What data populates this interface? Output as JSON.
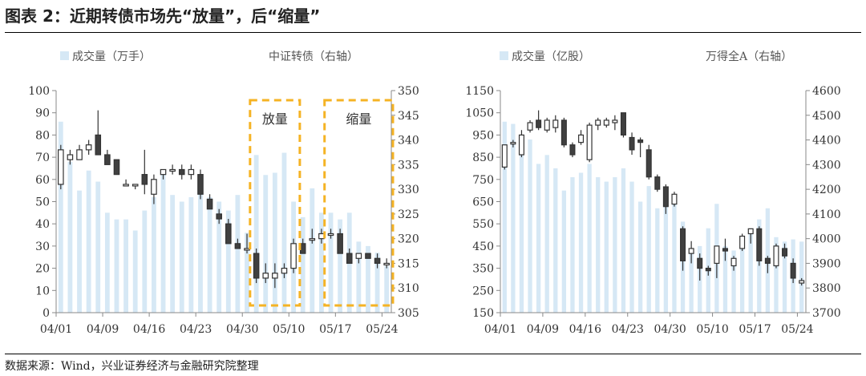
{
  "title": "图表 2：近期转债市场先“放量”，后“缩量”",
  "source": "数据来源：Wind，兴业证券经济与金融研究院整理",
  "colors": {
    "volume": "#d6e8f5",
    "up_fill": "#ffffff",
    "down_fill": "#404040",
    "stroke": "#333333",
    "highlight": "#f5b324"
  },
  "chart_data": [
    {
      "type": "candlestick-bar",
      "legend": {
        "volume": "成交量（万手）",
        "price": "中证转债（右轴）"
      },
      "ylim_left": [
        0,
        100
      ],
      "ylim_right": [
        305,
        350
      ],
      "yticks_left": [
        "0",
        "10",
        "20",
        "30",
        "40",
        "50",
        "60",
        "70",
        "80",
        "90",
        "100"
      ],
      "yticks_right": [
        "305",
        "310",
        "315",
        "320",
        "325",
        "330",
        "335",
        "340",
        "345",
        "350"
      ],
      "xticks": [
        "04/01",
        "04/09",
        "04/16",
        "04/23",
        "04/30",
        "05/10",
        "05/17",
        "05/24"
      ],
      "xtick_index": [
        0,
        5,
        10,
        15,
        20,
        25,
        30,
        35
      ],
      "n_days": 36,
      "volume": [
        86,
        68,
        55,
        64,
        59,
        45,
        42,
        42,
        37,
        46,
        52,
        64,
        53,
        50,
        52,
        59,
        52,
        50,
        46,
        53,
        36,
        71,
        62,
        63,
        72,
        50,
        43,
        56,
        45,
        45,
        42,
        45,
        32,
        30,
        27,
        21
      ],
      "ohlc": [
        [
          331,
          339,
          330,
          338
        ],
        [
          336,
          338,
          335,
          337
        ],
        [
          336,
          339,
          336,
          338
        ],
        [
          338,
          340,
          337,
          339
        ],
        [
          341,
          346,
          337,
          337
        ],
        [
          337,
          338,
          335,
          335
        ],
        [
          336,
          336,
          333,
          333
        ],
        [
          331,
          332,
          331,
          331
        ],
        [
          331,
          331,
          330,
          331
        ],
        [
          333,
          338,
          329,
          331
        ],
        [
          329,
          333,
          327,
          332
        ],
        [
          333,
          334,
          332,
          334
        ],
        [
          334,
          335,
          333,
          334
        ],
        [
          334,
          335,
          332,
          333
        ],
        [
          333,
          335,
          332,
          334
        ],
        [
          333,
          334,
          328,
          329
        ],
        [
          328,
          329,
          326,
          326
        ],
        [
          325,
          326,
          323,
          324
        ],
        [
          323,
          324,
          319,
          319
        ],
        [
          319,
          320,
          318,
          318
        ],
        [
          318,
          321,
          317,
          318
        ],
        [
          317,
          318,
          311,
          312
        ],
        [
          312,
          315,
          311,
          313
        ],
        [
          312,
          315,
          310,
          313
        ],
        [
          313,
          315,
          312,
          314
        ],
        [
          314,
          320,
          313,
          319
        ],
        [
          319,
          320,
          317,
          317
        ],
        [
          320,
          322,
          319,
          320
        ],
        [
          320,
          322,
          319,
          321
        ],
        [
          321,
          322,
          320,
          321
        ],
        [
          321,
          322,
          317,
          317
        ],
        [
          317,
          318,
          315,
          315
        ],
        [
          316,
          317,
          315,
          317
        ],
        [
          317,
          317,
          316,
          316
        ],
        [
          316,
          317,
          314,
          315
        ],
        [
          315,
          316,
          314,
          315
        ]
      ],
      "annotations": [
        {
          "text": "放量",
          "from": 21,
          "to": 25
        },
        {
          "text": "缩量",
          "from": 29,
          "to": 35
        }
      ]
    },
    {
      "type": "candlestick-bar",
      "legend": {
        "volume": "成交量（亿股）",
        "price": "万得全A（右轴）"
      },
      "ylim_left": [
        150,
        1150
      ],
      "ylim_right": [
        3700,
        4600
      ],
      "yticks_left": [
        "150",
        "250",
        "350",
        "450",
        "550",
        "650",
        "750",
        "850",
        "950",
        "1050",
        "1150"
      ],
      "yticks_right": [
        "3700",
        "3800",
        "3900",
        "4000",
        "4100",
        "4200",
        "4300",
        "4400",
        "4500",
        "4600"
      ],
      "xticks": [
        "04/01",
        "04/09",
        "04/16",
        "04/23",
        "04/30",
        "05/10",
        "05/17",
        "05/24"
      ],
      "xtick_index": [
        0,
        5,
        10,
        15,
        20,
        25,
        30,
        35
      ],
      "n_days": 36,
      "volume": [
        1010,
        1000,
        870,
        930,
        820,
        860,
        800,
        700,
        760,
        780,
        820,
        760,
        740,
        760,
        800,
        740,
        650,
        720,
        620,
        640,
        680,
        560,
        430,
        450,
        530,
        640,
        450,
        430,
        460,
        520,
        570,
        620,
        490,
        470,
        480,
        470
      ],
      "ohlc": [
        [
          4290,
          4380,
          4280,
          4380
        ],
        [
          4390,
          4400,
          4370,
          4390
        ],
        [
          4340,
          4440,
          4330,
          4420
        ],
        [
          4440,
          4480,
          4430,
          4470
        ],
        [
          4480,
          4520,
          4440,
          4450
        ],
        [
          4440,
          4490,
          4430,
          4480
        ],
        [
          4450,
          4500,
          4430,
          4480
        ],
        [
          4480,
          4490,
          4370,
          4380
        ],
        [
          4380,
          4390,
          4330,
          4340
        ],
        [
          4390,
          4440,
          4380,
          4420
        ],
        [
          4320,
          4470,
          4310,
          4460
        ],
        [
          4460,
          4490,
          4440,
          4480
        ],
        [
          4460,
          4490,
          4450,
          4480
        ],
        [
          4470,
          4500,
          4440,
          4480
        ],
        [
          4510,
          4510,
          4410,
          4420
        ],
        [
          4410,
          4430,
          4340,
          4360
        ],
        [
          4400,
          4410,
          4330,
          4390
        ],
        [
          4360,
          4380,
          4240,
          4250
        ],
        [
          4250,
          4260,
          4190,
          4200
        ],
        [
          4210,
          4220,
          4100,
          4130
        ],
        [
          4140,
          4190,
          4130,
          4180
        ],
        [
          4040,
          4050,
          3870,
          3910
        ],
        [
          3940,
          3990,
          3900,
          3960
        ],
        [
          3920,
          3940,
          3830,
          3880
        ],
        [
          3880,
          3890,
          3850,
          3870
        ],
        [
          3900,
          3970,
          3840,
          3970
        ],
        [
          3960,
          4000,
          3910,
          3950
        ],
        [
          3890,
          3930,
          3870,
          3920
        ],
        [
          3960,
          4020,
          3950,
          4010
        ],
        [
          4020,
          4040,
          3980,
          4040
        ],
        [
          4040,
          4050,
          3890,
          3910
        ],
        [
          3920,
          3930,
          3860,
          3900
        ],
        [
          3890,
          3980,
          3880,
          3970
        ],
        [
          3960,
          3980,
          3920,
          3930
        ],
        [
          3900,
          3920,
          3820,
          3840
        ],
        [
          3820,
          3840,
          3810,
          3830
        ]
      ]
    }
  ]
}
